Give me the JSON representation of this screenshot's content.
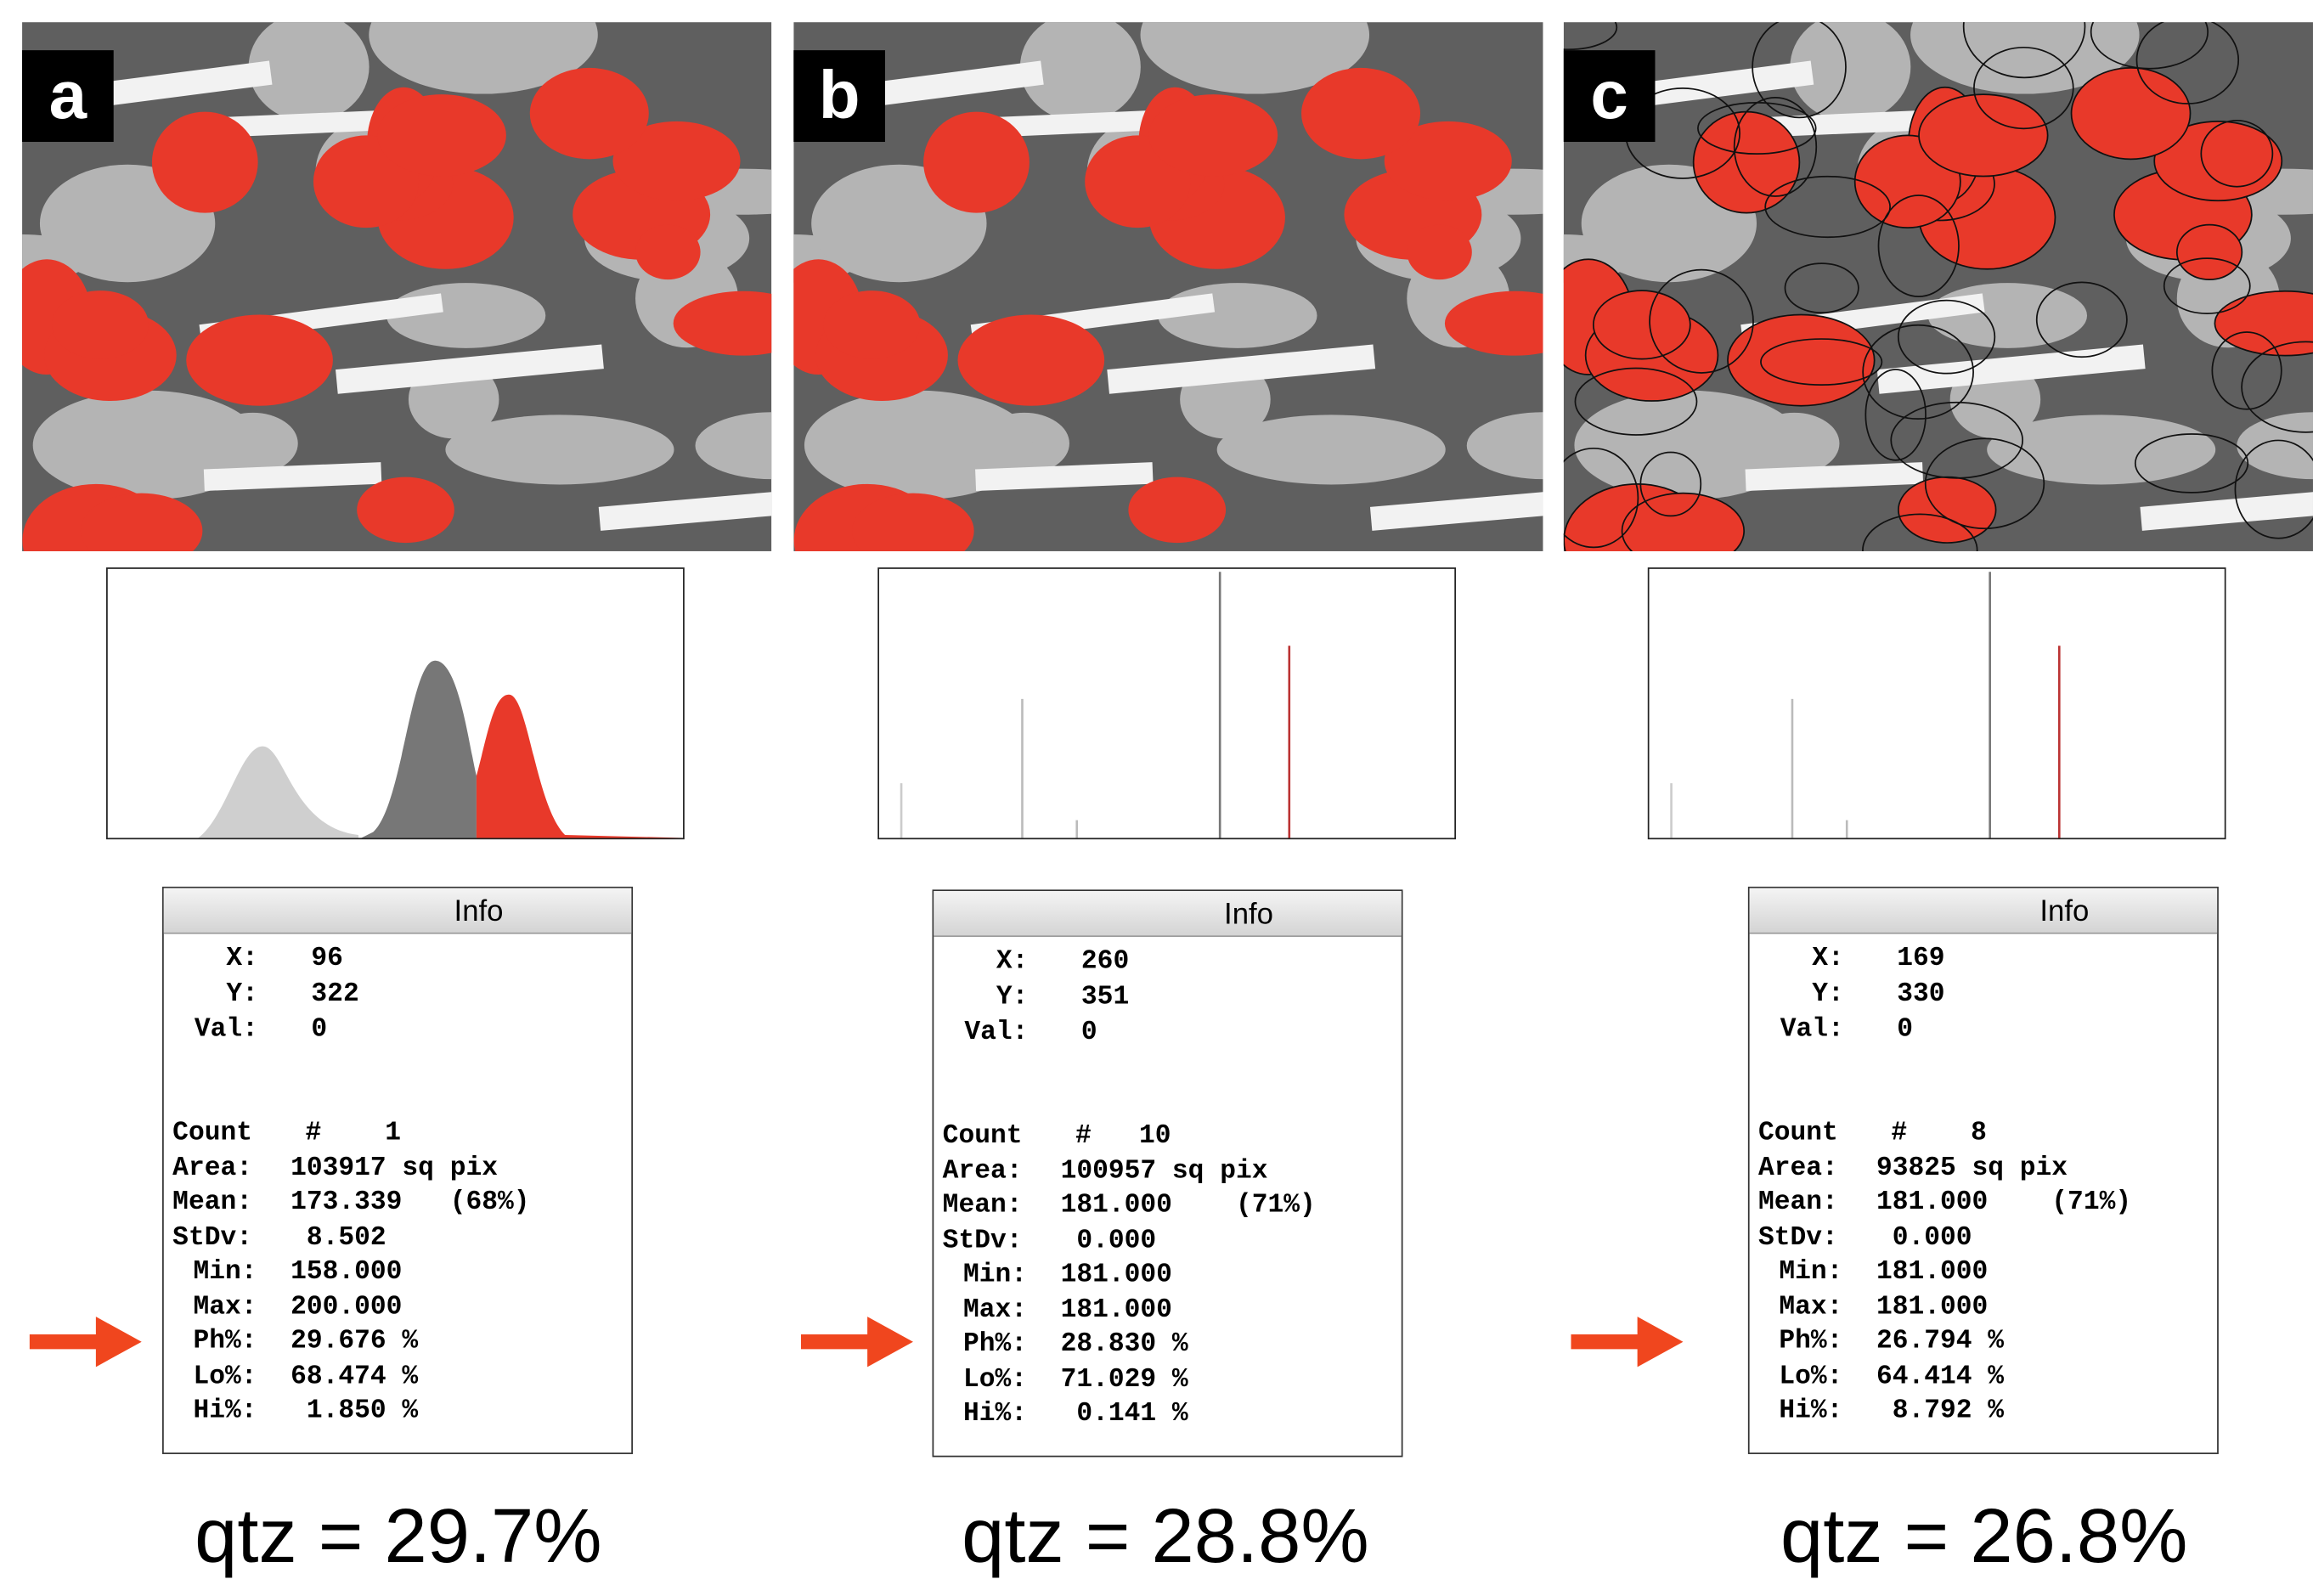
{
  "panels": [
    {
      "label": "a",
      "info": {
        "title": "Info",
        "cursor": [
          {
            "label": "X:",
            "value": "96"
          },
          {
            "label": "Y:",
            "value": "322"
          },
          {
            "label": "Val:",
            "value": "0"
          }
        ],
        "stats": [
          {
            "label": "Count",
            "value": "#    1"
          },
          {
            "label": "Area:",
            "value": "103917 sq pix"
          },
          {
            "label": "Mean:",
            "value": "173.339   (68%)"
          },
          {
            "label": "StDv:",
            "value": " 8.502"
          },
          {
            "label": "Min:",
            "value": "158.000"
          },
          {
            "label": "Max:",
            "value": "200.000"
          },
          {
            "label": "Ph%:",
            "value": "29.676 %"
          },
          {
            "label": "Lo%:",
            "value": "68.474 %"
          },
          {
            "label": "Hi%:",
            "value": " 1.850 %"
          }
        ]
      },
      "caption": "qtz = 29.7%"
    },
    {
      "label": "b",
      "info": {
        "title": "Info",
        "cursor": [
          {
            "label": "X:",
            "value": "260"
          },
          {
            "label": "Y:",
            "value": "351"
          },
          {
            "label": "Val:",
            "value": "0"
          }
        ],
        "stats": [
          {
            "label": "Count",
            "value": "#   10"
          },
          {
            "label": "Area:",
            "value": "100957 sq pix"
          },
          {
            "label": "Mean:",
            "value": "181.000    (71%)"
          },
          {
            "label": "StDv:",
            "value": " 0.000"
          },
          {
            "label": "Min:",
            "value": "181.000"
          },
          {
            "label": "Max:",
            "value": "181.000"
          },
          {
            "label": "Ph%:",
            "value": "28.830 %"
          },
          {
            "label": "Lo%:",
            "value": "71.029 %"
          },
          {
            "label": "Hi%:",
            "value": " 0.141 %"
          }
        ]
      },
      "caption": "qtz = 28.8%"
    },
    {
      "label": "c",
      "info": {
        "title": "Info",
        "cursor": [
          {
            "label": "X:",
            "value": "169"
          },
          {
            "label": "Y:",
            "value": "330"
          },
          {
            "label": "Val:",
            "value": "0"
          }
        ],
        "stats": [
          {
            "label": "Count",
            "value": "#    8"
          },
          {
            "label": "Area:",
            "value": "93825 sq pix"
          },
          {
            "label": "Mean:",
            "value": "181.000    (71%)"
          },
          {
            "label": "StDv:",
            "value": " 0.000"
          },
          {
            "label": "Min:",
            "value": "181.000"
          },
          {
            "label": "Max:",
            "value": "181.000"
          },
          {
            "label": "Ph%:",
            "value": "26.794 %"
          },
          {
            "label": "Lo%:",
            "value": "64.414 %"
          },
          {
            "label": "Hi%:",
            "value": " 8.792 %"
          }
        ]
      },
      "caption": "qtz = 26.8%"
    }
  ]
}
